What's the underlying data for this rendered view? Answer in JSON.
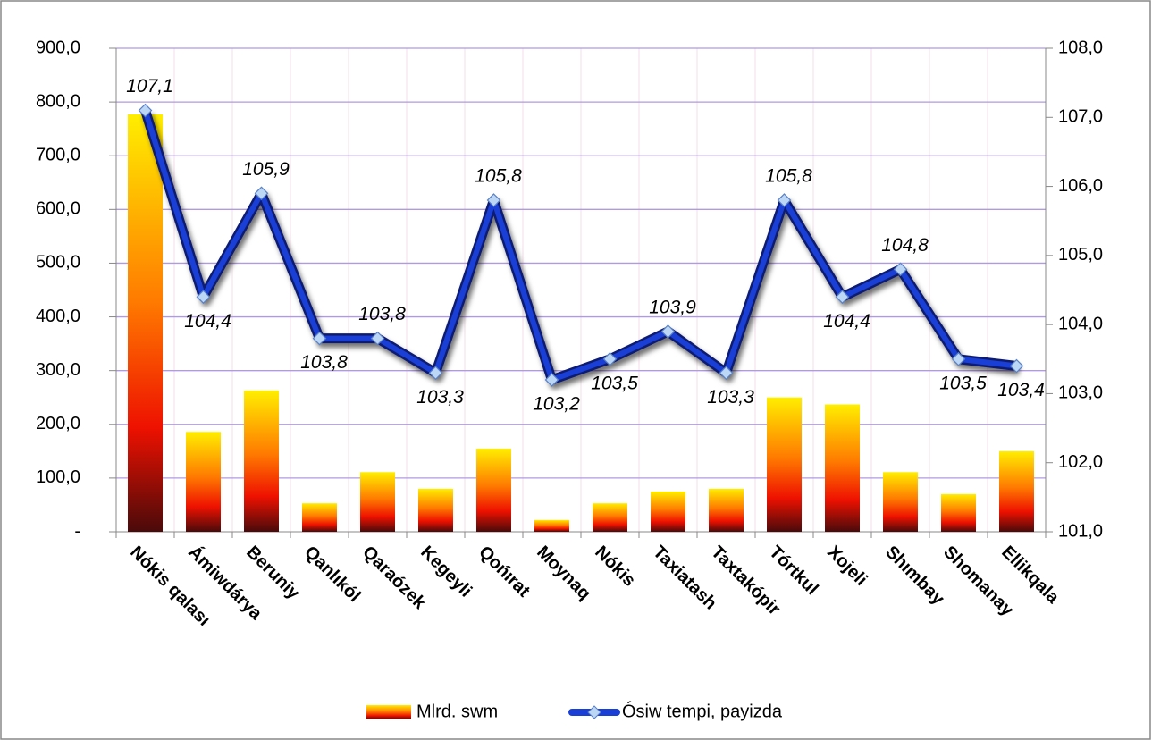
{
  "chart_data": {
    "type": "bar-line",
    "categories": [
      "Nókis qalası",
      "Ámiwdárya",
      "Beruniy",
      "Qanlıkól",
      "Qaraózek",
      "Kegeyli",
      "Qońırat",
      "Moynaq",
      "Nókis",
      "Taxiatash",
      "Taxtakópir",
      "Tórtkul",
      "Xojeli",
      "Shımbay",
      "Shomanay",
      "Ellikqala"
    ],
    "series": [
      {
        "name": "Mlrd. swm",
        "type": "bar",
        "color": "#ff9900",
        "values": [
          777,
          186,
          263,
          53,
          111,
          80,
          155,
          22,
          53,
          75,
          80,
          250,
          237,
          111,
          70,
          150
        ]
      },
      {
        "name": "Ósiw tempi, payizda",
        "type": "line",
        "axis": "y2",
        "color": "#1a3fd6",
        "values": [
          107.1,
          104.4,
          105.9,
          103.8,
          103.8,
          103.3,
          105.8,
          103.2,
          103.5,
          103.9,
          103.3,
          105.8,
          104.4,
          104.8,
          103.5,
          103.4
        ],
        "value_labels": [
          "107,1",
          "104,4",
          "105,9",
          "103,8",
          "103,8",
          "103,3",
          "105,8",
          "103,2",
          "103,5",
          "103,9",
          "103,3",
          "105,8",
          "104,4",
          "104,8",
          "103,5",
          "103,4"
        ]
      }
    ],
    "ylim": [
      0,
      900
    ],
    "yticks": [
      {
        "value": 0,
        "label": "-"
      },
      {
        "value": 100,
        "label": "100,0"
      },
      {
        "value": 200,
        "label": "200,0"
      },
      {
        "value": 300,
        "label": "300,0"
      },
      {
        "value": 400,
        "label": "400,0"
      },
      {
        "value": 500,
        "label": "500,0"
      },
      {
        "value": 600,
        "label": "600,0"
      },
      {
        "value": 700,
        "label": "700,0"
      },
      {
        "value": 800,
        "label": "800,0"
      },
      {
        "value": 900,
        "label": "900,0"
      }
    ],
    "y2lim": [
      101,
      108
    ],
    "y2ticks": [
      {
        "value": 101,
        "label": "101,0"
      },
      {
        "value": 102,
        "label": "102,0"
      },
      {
        "value": 103,
        "label": "103,0"
      },
      {
        "value": 104,
        "label": "104,0"
      },
      {
        "value": 105,
        "label": "105,0"
      },
      {
        "value": 106,
        "label": "106,0"
      },
      {
        "value": 107,
        "label": "107,0"
      },
      {
        "value": 108,
        "label": "108,0"
      }
    ],
    "grid": true,
    "legend": "bottom"
  }
}
